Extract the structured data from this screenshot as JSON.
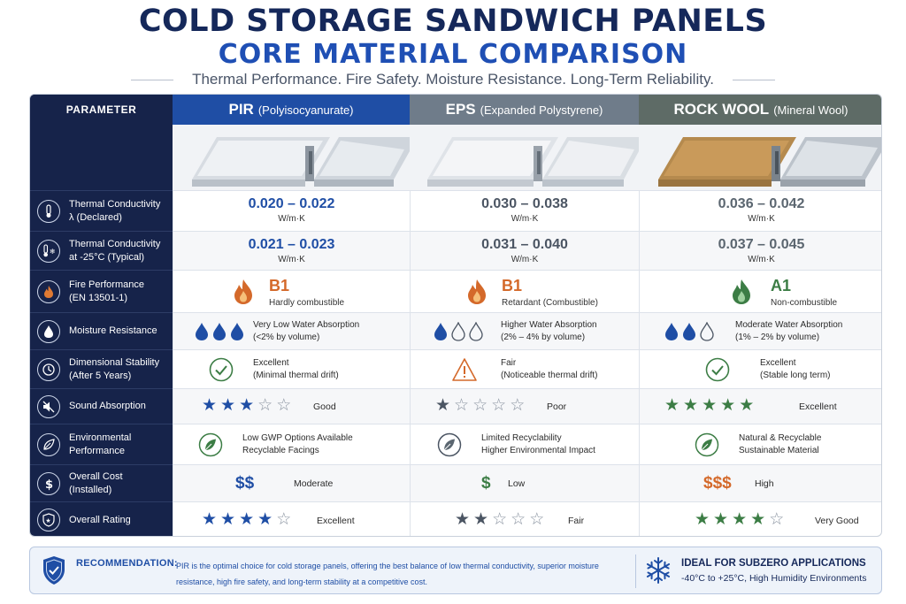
{
  "header": {
    "title": "COLD STORAGE SANDWICH PANELS",
    "subtitle_main": "CORE MATERIAL COMPARISON",
    "tagline": "Thermal Performance. Fire Safety. Moisture Resistance. Long-Term Reliability."
  },
  "columns": {
    "param_header": "PARAMETER",
    "pir": {
      "name": "PIR",
      "sub": "(Polyisocyanurate)",
      "color": "#1f4ea5"
    },
    "eps": {
      "name": "EPS",
      "sub": "(Expanded Polystyrene)",
      "color": "#6f7c8a"
    },
    "rw": {
      "name": "ROCK WOOL",
      "sub": "(Mineral Wool)",
      "color": "#5e6b66"
    }
  },
  "rows": {
    "thermal_declared": {
      "label": "Thermal Conductivity\nλ (Declared)",
      "icon": "thermometer-icon",
      "pir": {
        "value": "0.020 – 0.022",
        "unit": "W/m·K"
      },
      "eps": {
        "value": "0.030 – 0.038",
        "unit": "W/m·K"
      },
      "rw": {
        "value": "0.036 – 0.042",
        "unit": "W/m·K"
      }
    },
    "thermal_cold": {
      "label": "Thermal Conductivity\nat -25°C (Typical)",
      "icon": "snowflake-thermometer-icon",
      "pir": {
        "value": "0.021 – 0.023",
        "unit": "W/m·K"
      },
      "eps": {
        "value": "0.031 – 0.040",
        "unit": "W/m·K"
      },
      "rw": {
        "value": "0.037 – 0.045",
        "unit": "W/m·K"
      }
    },
    "fire": {
      "label": "Fire Performance\n(EN 13501-1)",
      "icon": "flame-icon",
      "pir": {
        "grade": "B1",
        "desc": "Hardly combustible",
        "color": "#d4692a"
      },
      "eps": {
        "grade": "B1",
        "desc": "Retardant (Combustible)",
        "color": "#d4692a"
      },
      "rw": {
        "grade": "A1",
        "desc": "Non-combustible",
        "color": "#3c7d45"
      }
    },
    "moisture": {
      "label": "Moisture Resistance",
      "icon": "water-drop-icon",
      "pir": {
        "text": "Very Low Water Absorption\n(<2% by volume)",
        "filled": 3
      },
      "eps": {
        "text": "Higher Water Absorption\n(2% – 4% by volume)",
        "filled": 1
      },
      "rw": {
        "text": "Moderate Water Absorption\n(1% – 2% by volume)",
        "filled": 2
      }
    },
    "stability": {
      "label": "Dimensional Stability\n(After 5 Years)",
      "icon": "clock-icon",
      "pir": {
        "text": "Excellent\n(Minimal thermal drift)",
        "status": "check"
      },
      "eps": {
        "text": "Fair\n(Noticeable thermal drift)",
        "status": "warning"
      },
      "rw": {
        "text": "Excellent\n(Stable long term)",
        "status": "check"
      }
    },
    "sound": {
      "label": "Sound Absorption",
      "icon": "mute-speaker-icon",
      "pir": {
        "rating": 3,
        "text": "Good"
      },
      "eps": {
        "rating": 1,
        "text": "Poor"
      },
      "rw": {
        "rating": 5,
        "text": "Excellent"
      }
    },
    "environment": {
      "label": "Environmental\nPerformance",
      "icon": "leaf-icon",
      "pir": {
        "text": "Low GWP Options Available\nRecyclable Facings"
      },
      "eps": {
        "text": "Limited Recyclability\nHigher Environmental Impact"
      },
      "rw": {
        "text": "Natural & Recyclable\nSustainable Material"
      }
    },
    "cost": {
      "label": "Overall Cost\n(Installed)",
      "icon": "dollar-icon",
      "pir": {
        "symbol": "$$",
        "text": "Moderate",
        "color": "#1f4ea5"
      },
      "eps": {
        "symbol": "$",
        "text": "Low",
        "color": "#3c7d45"
      },
      "rw": {
        "symbol": "$$$",
        "text": "High",
        "color": "#d4692a"
      }
    },
    "rating": {
      "label": "Overall Rating",
      "icon": "shield-star-icon",
      "pir": {
        "rating": 4,
        "text": "Excellent"
      },
      "eps": {
        "rating": 2,
        "text": "Fair"
      },
      "rw": {
        "rating": 4,
        "text": "Very Good"
      }
    }
  },
  "recommendation": {
    "title": "RECOMMENDATION:",
    "text": "PIR is the optimal choice for cold storage panels, offering the best balance of low thermal conductivity, superior moisture resistance, high fire safety, and long-term stability at a competitive cost.",
    "icon": "shield-check-icon",
    "ideal_title": "IDEAL FOR SUBZERO APPLICATIONS",
    "ideal_sub": "-40°C to +25°C, High Humidity Environments",
    "ideal_icon": "snowflake-icon"
  }
}
